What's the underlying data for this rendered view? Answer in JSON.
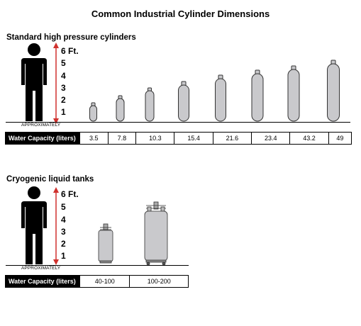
{
  "title": "Common Industrial Cylinder Dimensions",
  "section1": {
    "heading": "Standard high pressure cylinders",
    "scale_labels": [
      "6 Ft.",
      "5",
      "4",
      "3",
      "2",
      "1"
    ],
    "approx_label": "APPROXIMATELY",
    "table_header": "Water Capacity (liters)",
    "capacities": [
      "3.5",
      "7.8",
      "10.3",
      "15.4",
      "21.6",
      "23.4",
      "43.2",
      "49"
    ]
  },
  "section2": {
    "heading": "Cryogenic liquid tanks",
    "scale_labels": [
      "6 Ft.",
      "5",
      "4",
      "3",
      "2",
      "1"
    ],
    "approx_label": "APPROXIMATELY",
    "table_header": "Water Capacity (liters)",
    "capacities": [
      "40-100",
      "100-200"
    ]
  },
  "colors": {
    "arrow": "#d0312d",
    "cylinder_fill": "#c9c9cc",
    "cylinder_stroke": "#333333",
    "header_bg": "#000000"
  }
}
